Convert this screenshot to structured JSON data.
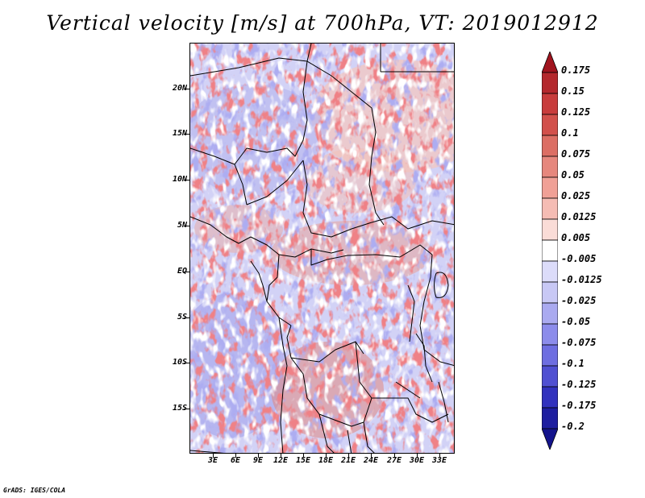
{
  "title": "Vertical velocity [m/s] at 700hPa, VT: 2019012912",
  "credit": "GrADS: IGES/COLA",
  "map": {
    "lat_labels": [
      "20N",
      "15N",
      "10N",
      "5N",
      "EQ",
      "5S",
      "10S",
      "15S"
    ],
    "lon_labels": [
      "3E",
      "6E",
      "9E",
      "12E",
      "15E",
      "18E",
      "21E",
      "24E",
      "27E",
      "30E",
      "33E"
    ]
  },
  "colorbar": {
    "labels": [
      "0.175",
      "0.15",
      "0.125",
      "0.1",
      "0.075",
      "0.05",
      "0.025",
      "0.0125",
      "0.005",
      "-0.005",
      "-0.0125",
      "-0.025",
      "-0.05",
      "-0.075",
      "-0.1",
      "-0.125",
      "-0.175",
      "-0.2"
    ],
    "colors": [
      "#a0141e",
      "#b4282d",
      "#c83c3c",
      "#d2504b",
      "#dc6e64",
      "#e6877d",
      "#f0a096",
      "#f5bcb4",
      "#fadcd7",
      "#ffffff",
      "#dcdcfa",
      "#c8c8f5",
      "#aaaaf0",
      "#8c8ceb",
      "#6e6ee1",
      "#5050d2",
      "#3232be",
      "#1e1ea0",
      "#14148c"
    ]
  }
}
